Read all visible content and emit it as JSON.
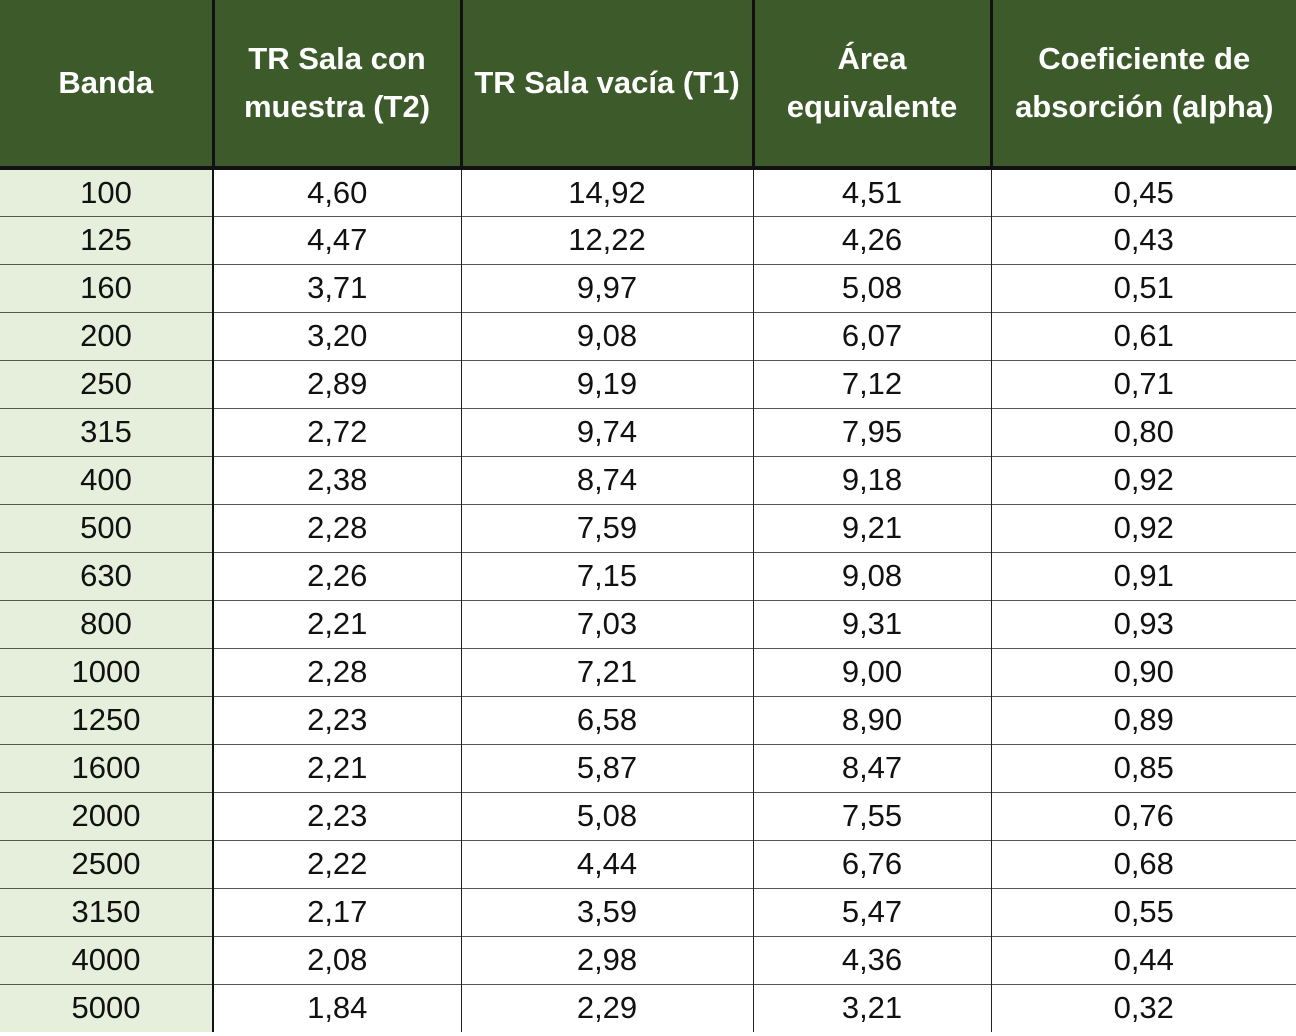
{
  "table": {
    "headers": [
      "Banda",
      "TR Sala con muestra (T2)",
      "TR Sala vacía (T1)",
      "Área equivalente",
      "Coeficiente de absorción (alpha)"
    ],
    "rows": [
      [
        "100",
        "4,60",
        "14,92",
        "4,51",
        "0,45"
      ],
      [
        "125",
        "4,47",
        "12,22",
        "4,26",
        "0,43"
      ],
      [
        "160",
        "3,71",
        "9,97",
        "5,08",
        "0,51"
      ],
      [
        "200",
        "3,20",
        "9,08",
        "6,07",
        "0,61"
      ],
      [
        "250",
        "2,89",
        "9,19",
        "7,12",
        "0,71"
      ],
      [
        "315",
        "2,72",
        "9,74",
        "7,95",
        "0,80"
      ],
      [
        "400",
        "2,38",
        "8,74",
        "9,18",
        "0,92"
      ],
      [
        "500",
        "2,28",
        "7,59",
        "9,21",
        "0,92"
      ],
      [
        "630",
        "2,26",
        "7,15",
        "9,08",
        "0,91"
      ],
      [
        "800",
        "2,21",
        "7,03",
        "9,31",
        "0,93"
      ],
      [
        "1000",
        "2,28",
        "7,21",
        "9,00",
        "0,90"
      ],
      [
        "1250",
        "2,23",
        "6,58",
        "8,90",
        "0,89"
      ],
      [
        "1600",
        "2,21",
        "5,87",
        "8,47",
        "0,85"
      ],
      [
        "2000",
        "2,23",
        "5,08",
        "7,55",
        "0,76"
      ],
      [
        "2500",
        "2,22",
        "4,44",
        "6,76",
        "0,68"
      ],
      [
        "3150",
        "2,17",
        "3,59",
        "5,47",
        "0,55"
      ],
      [
        "4000",
        "2,08",
        "2,98",
        "4,36",
        "0,44"
      ],
      [
        "5000",
        "1,84",
        "2,29",
        "3,21",
        "0,32"
      ]
    ]
  },
  "colors": {
    "header_bg": "#3d5a2b",
    "header_text": "#ffffff",
    "first_column_bg": "#e6eedc",
    "grid_lines": "#222222"
  }
}
